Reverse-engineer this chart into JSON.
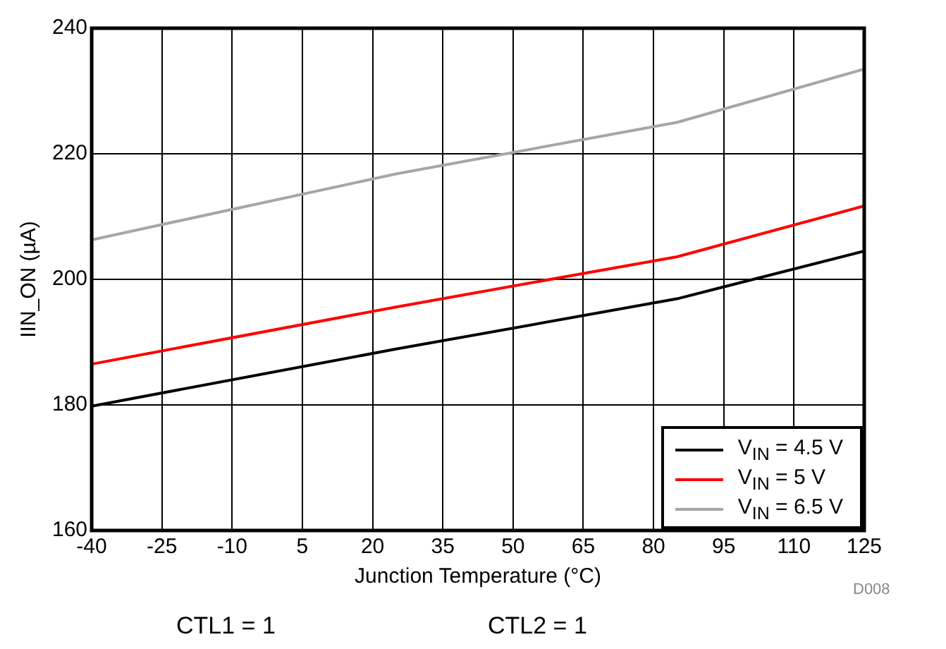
{
  "chart_data": {
    "type": "line",
    "xlabel": "Junction Temperature (°C)",
    "ylabel": "IIN_ON (µA)",
    "series": [
      {
        "name": "V$_{IN}$ = 4.5 V",
        "color": "#000000",
        "x": [
          -40,
          25,
          85,
          125
        ],
        "values": [
          179.8,
          188.9,
          196.9,
          204.5
        ]
      },
      {
        "name": "V$_{IN}$ = 5 V",
        "color": "#ff0000",
        "x": [
          -40,
          25,
          85,
          125
        ],
        "values": [
          186.5,
          195.6,
          203.6,
          211.7
        ]
      },
      {
        "name": "V$_{IN}$ = 6.5 V",
        "color": "#a6a6a6",
        "x": [
          -40,
          25,
          85,
          125
        ],
        "values": [
          206.3,
          216.8,
          225,
          233.5
        ]
      }
    ],
    "xlim": [
      -40,
      125
    ],
    "xticks": [
      -40,
      -25,
      -10,
      5,
      20,
      35,
      50,
      65,
      80,
      95,
      110,
      125
    ],
    "ylim": [
      160,
      240
    ],
    "yticks": [
      160,
      180,
      200,
      220,
      240
    ],
    "grid": true,
    "legend": "bottom right",
    "marker": "none",
    "line_style": "solid",
    "annotations": [
      "CTL1 = 1",
      "CTL2 = 1",
      "D008"
    ]
  }
}
